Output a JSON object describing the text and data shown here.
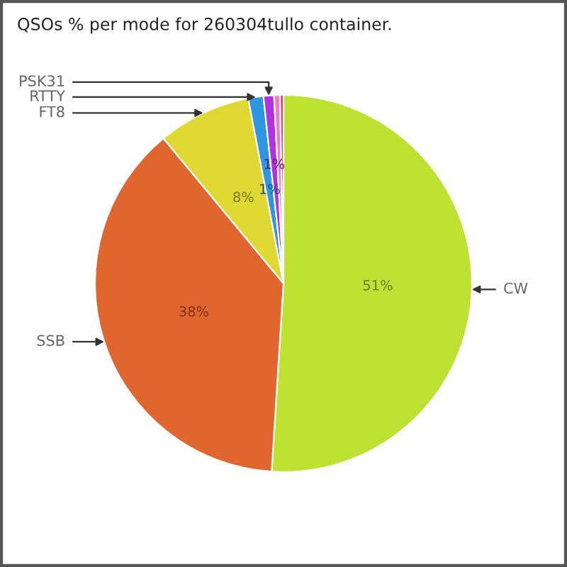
{
  "chart_data": {
    "type": "pie",
    "title": "QSOs % per mode for 260304tullo container.",
    "categories": [
      "CW",
      "SSB",
      "FT8",
      "RTTY",
      "PSK31",
      null,
      null
    ],
    "values": [
      51,
      38,
      8,
      1.3,
      0.9,
      0.5,
      0.3
    ],
    "colors": [
      "#bee232",
      "#e0652e",
      "#e0d832",
      "#2f96e0",
      "#b132e0",
      "#f07ac8",
      "#e03c64"
    ],
    "value_labels": [
      "51%",
      "38%",
      "8%",
      "1%",
      "1%",
      null,
      null
    ]
  }
}
